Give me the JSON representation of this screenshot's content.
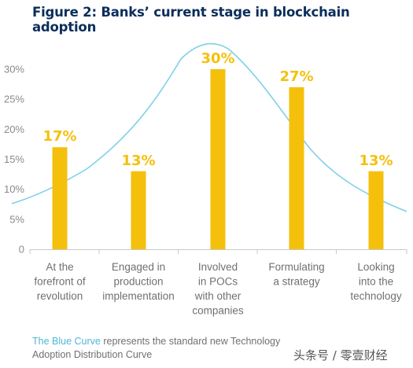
{
  "chart_data": {
    "type": "bar",
    "title": "Figure 2: Banks’ current stage in blockchain adoption",
    "categories": [
      [
        "At the",
        "forefront of",
        "revolution"
      ],
      [
        "Engaged in",
        "production",
        "implementation"
      ],
      [
        "Involved",
        "in POCs",
        "with other",
        "companies"
      ],
      [
        "Formulating",
        "a strategy"
      ],
      [
        "Looking",
        "into the",
        "technology"
      ]
    ],
    "values": [
      17,
      13,
      30,
      27,
      13
    ],
    "data_labels": [
      "17%",
      "13%",
      "30%",
      "27%",
      "13%"
    ],
    "ylim": [
      0,
      30
    ],
    "yticks": [
      0,
      5,
      10,
      15,
      20,
      25,
      30
    ],
    "ytick_labels": [
      "0",
      "5%",
      "10%",
      "15%",
      "20%",
      "25%",
      "30%"
    ],
    "overlay_curve": "bell-shaped adoption distribution curve",
    "grid": false,
    "legend": "none"
  },
  "footnote": {
    "highlight": "The Blue Curve",
    "rest": " represents the standard new Technology Adoption Distribution Curve"
  },
  "watermark": "头条号 / 零壹财经",
  "colors": {
    "bar": "#f5c00c",
    "label": "#f5c00c",
    "curve": "#7fd0e6",
    "title": "#0b2e5a",
    "highlight": "#4fb7d6",
    "axis_text": "#8a8a8a"
  }
}
